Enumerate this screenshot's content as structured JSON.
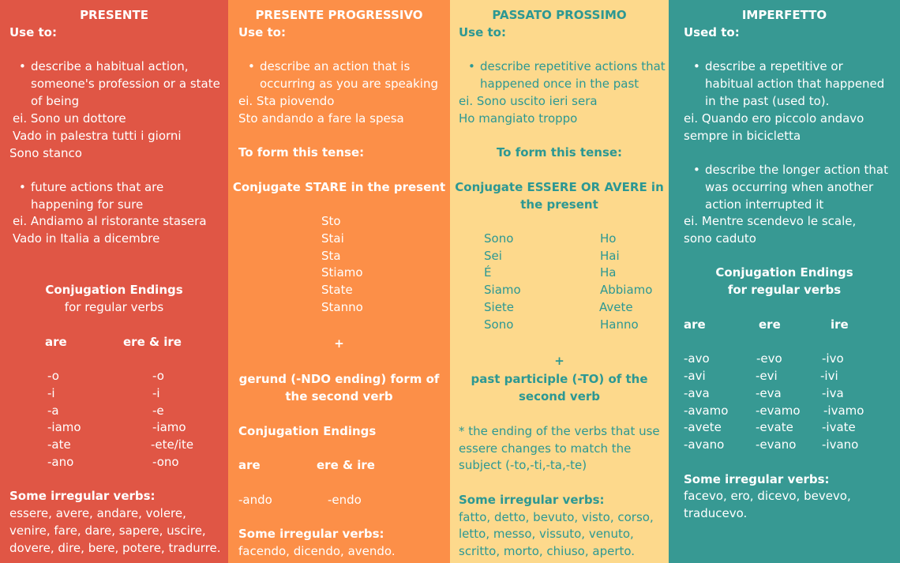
{
  "colors": {
    "presente": "#E05645",
    "progressivo": "#FC8F48",
    "passato": "#FDD98C",
    "imperfetto": "#379993",
    "passato_text": "#2C9893"
  },
  "presente": {
    "title": "PRESENTE",
    "use_to": "Use to:",
    "bullet1": [
      "describe a habitual action,",
      "someone's profession or a state",
      "of being"
    ],
    "examples1": [
      "ei. Sono un dottore",
      "Vado in palestra tutti i giorni",
      "Sono stanco"
    ],
    "bullet2": [
      "future actions that are",
      "happening for sure"
    ],
    "examples2": [
      "ei. Andiamo al ristorante stasera",
      "Vado in Italia a dicembre"
    ],
    "endings_title": "Conjugation Endings",
    "endings_subtitle": "for regular verbs",
    "col_are": "are",
    "col_ere": "ere  & ire",
    "are_endings": [
      "-o",
      "-i",
      "-a",
      "-iamo",
      "-ate",
      "-ano"
    ],
    "ere_endings": [
      "-o",
      "-i",
      "-e",
      "-iamo",
      "-ete/ite",
      "-ono"
    ],
    "irregular_title": "Some irregular verbs:",
    "irregular": [
      "essere, avere, andare, volere,",
      "venire, fare, dare, sapere, uscire,",
      "dovere, dire, bere, potere, tradurre."
    ]
  },
  "progressivo": {
    "title": "PRESENTE PROGRESSIVO",
    "use_to": "Use to:",
    "bullet1": [
      "describe an action that is",
      "occurring as you are speaking"
    ],
    "examples": [
      "ei. Sta piovendo",
      "Sto andando a fare la spesa"
    ],
    "form_title": "To form this tense:",
    "conj_title": "Conjugate STARE in the present",
    "stare": [
      "Sto",
      "Stai",
      "Sta",
      "Stiamo",
      "State",
      "Stanno"
    ],
    "plus": "+",
    "gerund": [
      "gerund (-NDO ending) form of",
      "the second verb"
    ],
    "endings_title": "Conjugation Endings",
    "col_are": "are",
    "col_ere": "ere  & ire",
    "are_end": "-ando",
    "ere_end": "-endo",
    "irregular_title": "Some irregular verbs:",
    "irregular": "facendo, dicendo, avendo."
  },
  "passato": {
    "title": "PASSATO PROSSIMO",
    "use_to": "Use to:",
    "bullet1": [
      "describe repetitive actions that",
      "happened once in the past"
    ],
    "examples": [
      "ei. Sono uscito ieri sera",
      "Ho mangiato troppo"
    ],
    "form_title": "To form this tense:",
    "conj_title": [
      "Conjugate ESSERE OR AVERE in",
      "the present"
    ],
    "essere": [
      "Sono",
      "Sei",
      "É",
      "Siamo",
      "Siete",
      "Sono"
    ],
    "avere": [
      "Ho",
      "Hai",
      "Ha",
      "Abbiamo",
      "Avete",
      "Hanno"
    ],
    "plus": "+",
    "participle": [
      "past participle (-TO) of the",
      "second verb"
    ],
    "note": [
      "* the ending of the verbs that use",
      "essere changes to match the",
      "subject (-to,-ti,-ta,-te)"
    ],
    "irregular_title": "Some irregular verbs:",
    "irregular": [
      "fatto, detto, bevuto, visto, corso,",
      "letto, messo, vissuto, venuto,",
      "scritto, morto, chiuso, aperto."
    ]
  },
  "imperfetto": {
    "title": "IMPERFETTO",
    "use_to": "Used to:",
    "bullet1": [
      "describe a repetitive or",
      "habitual action that happened",
      "in the past (used to)."
    ],
    "examples1": [
      "ei. Quando ero piccolo andavo",
      "sempre in bicicletta"
    ],
    "bullet2": [
      "describe the longer action that",
      "was occurring when another",
      "action interrupted it"
    ],
    "examples2": [
      "ei. Mentre scendevo le scale,",
      "sono caduto"
    ],
    "endings_title": "Conjugation Endings",
    "endings_subtitle": "for regular verbs",
    "col_are": "are",
    "col_ere": "ere",
    "col_ire": "ire",
    "are_endings": [
      "-avo",
      "-avi",
      "-ava",
      "-avamo",
      "-avete",
      "-avano"
    ],
    "ere_endings": [
      "-evo",
      "-evi",
      "-eva",
      "-evamo",
      "-evate",
      "-evano"
    ],
    "ire_endings": [
      "-ivo",
      "-ivi",
      "-iva",
      "-ivamo",
      "-ivate",
      "-ivano"
    ],
    "irregular_title": "Some irregular verbs:",
    "irregular": [
      "facevo, ero, dicevo, bevevo,",
      "traducevo."
    ]
  }
}
